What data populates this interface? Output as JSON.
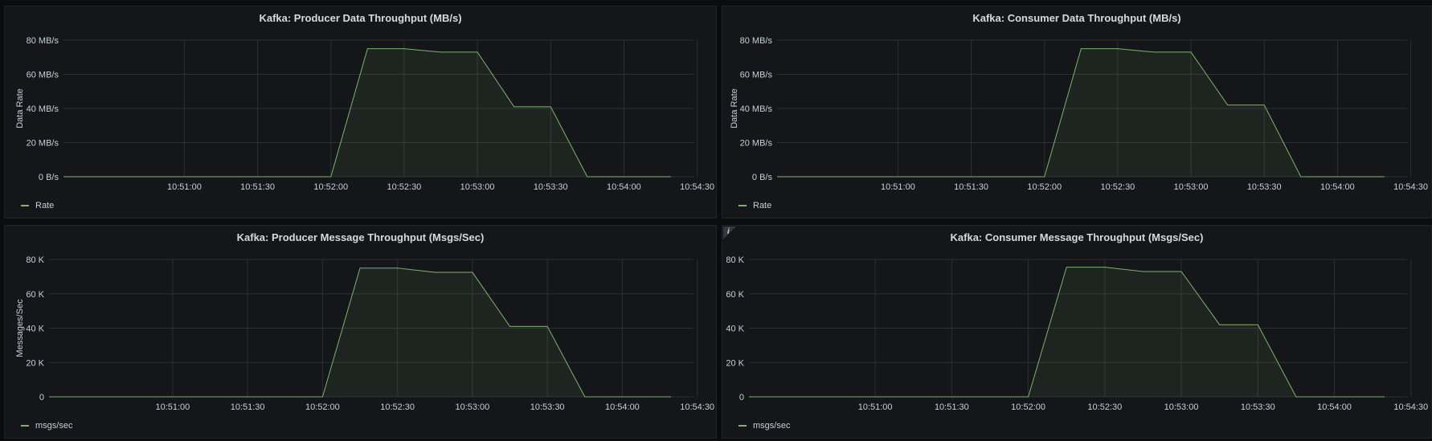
{
  "colors": {
    "series": "#7eb26d",
    "grid": "#2c2f33",
    "text": "#c7d0d9",
    "panel": "#141619"
  },
  "info_icon_glyph": "i",
  "chart_data": [
    {
      "type": "area",
      "title": "Kafka: Producer Data Throughput (MB/s)",
      "ylabel": "Data Rate",
      "xlabel": "",
      "ylim": [
        0,
        80
      ],
      "yticks": [
        0,
        20,
        40,
        60,
        80
      ],
      "ytick_labels": [
        "0 B/s",
        "20 MB/s",
        "40 MB/s",
        "60 MB/s",
        "80 MB/s"
      ],
      "xlim": [
        0,
        230
      ],
      "xticks": [
        30,
        60,
        90,
        120,
        150,
        180,
        210
      ],
      "xtick_labels": [
        "10:51:00",
        "10:51:30",
        "10:52:00",
        "10:52:30",
        "10:53:00",
        "10:53:30",
        "10:54:00",
        "10:54:30"
      ],
      "xtick_values": [
        30,
        60,
        90,
        120,
        150,
        180,
        210,
        240
      ],
      "series": [
        {
          "name": "Rate",
          "x": [
            -20,
            90,
            105,
            120,
            135,
            150,
            165,
            180,
            195,
            240
          ],
          "values": [
            0,
            0,
            75,
            75,
            73,
            73,
            41,
            41,
            0,
            0
          ]
        }
      ],
      "x_start": -19.5,
      "x_end": 238.5
    },
    {
      "type": "area",
      "title": "Kafka: Consumer Data Throughput (MB/s)",
      "ylabel": "Data Rate",
      "xlabel": "",
      "ylim": [
        0,
        80
      ],
      "yticks": [
        0,
        20,
        40,
        60,
        80
      ],
      "ytick_labels": [
        "0 B/s",
        "20 MB/s",
        "40 MB/s",
        "60 MB/s",
        "80 MB/s"
      ],
      "xtick_labels": [
        "10:51:00",
        "10:51:30",
        "10:52:00",
        "10:52:30",
        "10:53:00",
        "10:53:30",
        "10:54:00",
        "10:54:30"
      ],
      "xtick_values": [
        30,
        60,
        90,
        120,
        150,
        180,
        210,
        240
      ],
      "series": [
        {
          "name": "Rate",
          "x": [
            -20,
            90,
            105,
            120,
            135,
            150,
            165,
            180,
            195,
            240
          ],
          "values": [
            0,
            0,
            75,
            75,
            73,
            73,
            42,
            42,
            0,
            0
          ]
        }
      ],
      "x_start": -19.5,
      "x_end": 238.5
    },
    {
      "type": "area",
      "title": "Kafka: Producer Message Throughput (Msgs/Sec)",
      "ylabel": "Messages/Sec",
      "xlabel": "",
      "ylim": [
        0,
        80000
      ],
      "yticks": [
        0,
        20000,
        40000,
        60000,
        80000
      ],
      "ytick_labels": [
        "0",
        "20 K",
        "40 K",
        "60 K",
        "80 K"
      ],
      "xtick_labels": [
        "10:51:00",
        "10:51:30",
        "10:52:00",
        "10:52:30",
        "10:53:00",
        "10:53:30",
        "10:54:00",
        "10:54:30"
      ],
      "xtick_values": [
        30,
        60,
        90,
        120,
        150,
        180,
        210,
        240
      ],
      "series": [
        {
          "name": "msgs/sec",
          "x": [
            -20,
            90,
            105,
            120,
            135,
            150,
            165,
            180,
            195,
            240
          ],
          "values": [
            0,
            0,
            75000,
            75000,
            72500,
            72500,
            41000,
            41000,
            0,
            0
          ]
        }
      ],
      "x_start": -19.5,
      "x_end": 238.5
    },
    {
      "type": "area",
      "title": "Kafka: Consumer Message Throughput (Msgs/Sec)",
      "ylabel": "",
      "xlabel": "",
      "ylim": [
        0,
        80000
      ],
      "yticks": [
        0,
        20000,
        40000,
        60000,
        80000
      ],
      "ytick_labels": [
        "0",
        "20 K",
        "40 K",
        "60 K",
        "80 K"
      ],
      "xtick_labels": [
        "10:51:00",
        "10:51:30",
        "10:52:00",
        "10:52:30",
        "10:53:00",
        "10:53:30",
        "10:54:00",
        "10:54:30"
      ],
      "xtick_values": [
        30,
        60,
        90,
        120,
        150,
        180,
        210,
        240
      ],
      "series": [
        {
          "name": "msgs/sec",
          "x": [
            -20,
            90,
            105,
            120,
            135,
            150,
            165,
            180,
            195,
            240
          ],
          "values": [
            0,
            0,
            75500,
            75500,
            73000,
            73000,
            42000,
            42000,
            0,
            0
          ]
        }
      ],
      "x_start": -19.5,
      "x_end": 238.5
    }
  ]
}
